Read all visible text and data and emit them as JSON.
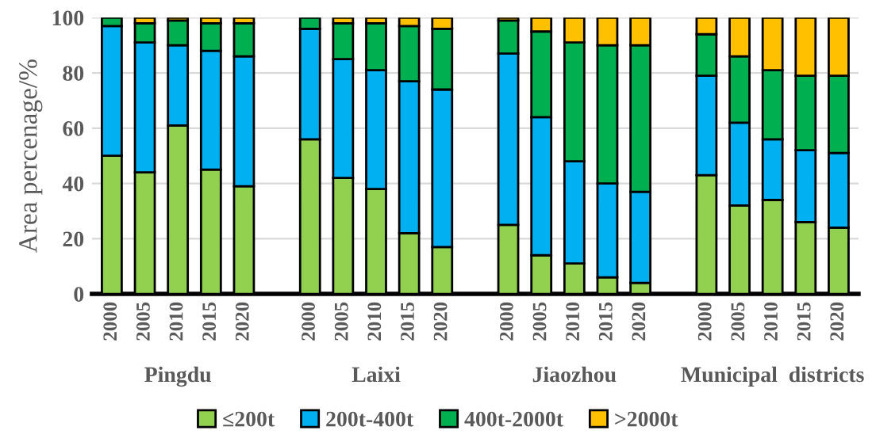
{
  "chart_data": {
    "type": "bar",
    "stacked": true,
    "ylabel": "Area percenage/%",
    "categories": [
      "2000",
      "2005",
      "2010",
      "2015",
      "2020",
      null,
      "2000",
      "2005",
      "2010",
      "2015",
      "2020",
      null,
      "2000",
      "2005",
      "2010",
      "2015",
      "2020",
      null,
      "2000",
      "2005",
      "2010",
      "2015",
      "2020"
    ],
    "series": [
      {
        "name": "≤200t",
        "color": "#92d050",
        "values": [
          50,
          44,
          61,
          45,
          39,
          null,
          56,
          42,
          38,
          22,
          17,
          null,
          25,
          14,
          11,
          6,
          4,
          null,
          43,
          32,
          34,
          26,
          24
        ]
      },
      {
        "name": "200t-400t",
        "color": "#00b0f0",
        "values": [
          47,
          47,
          29,
          43,
          47,
          null,
          40,
          43,
          43,
          55,
          57,
          null,
          62,
          50,
          37,
          34,
          33,
          null,
          36,
          30,
          22,
          26,
          27
        ]
      },
      {
        "name": "400t-2000t",
        "color": "#00b050",
        "values": [
          3,
          7,
          9,
          10,
          12,
          null,
          4,
          13,
          17,
          20,
          22,
          null,
          12,
          31,
          43,
          50,
          53,
          null,
          15,
          24,
          25,
          27,
          28
        ]
      },
      {
        "name": ">2000t",
        "color": "#ffc000",
        "values": [
          0,
          2,
          1,
          2,
          2,
          null,
          0,
          2,
          2,
          3,
          4,
          null,
          1,
          5,
          9,
          10,
          10,
          null,
          6,
          14,
          19,
          21,
          21
        ]
      }
    ],
    "ylim": [
      0,
      100
    ],
    "yticks": [
      0,
      20,
      40,
      60,
      80,
      100
    ],
    "grid": "y",
    "legend": "bottom",
    "annotations": [
      "Pingdu",
      "Laixi",
      "Jiaozhou",
      "Municipal  districts"
    ]
  }
}
